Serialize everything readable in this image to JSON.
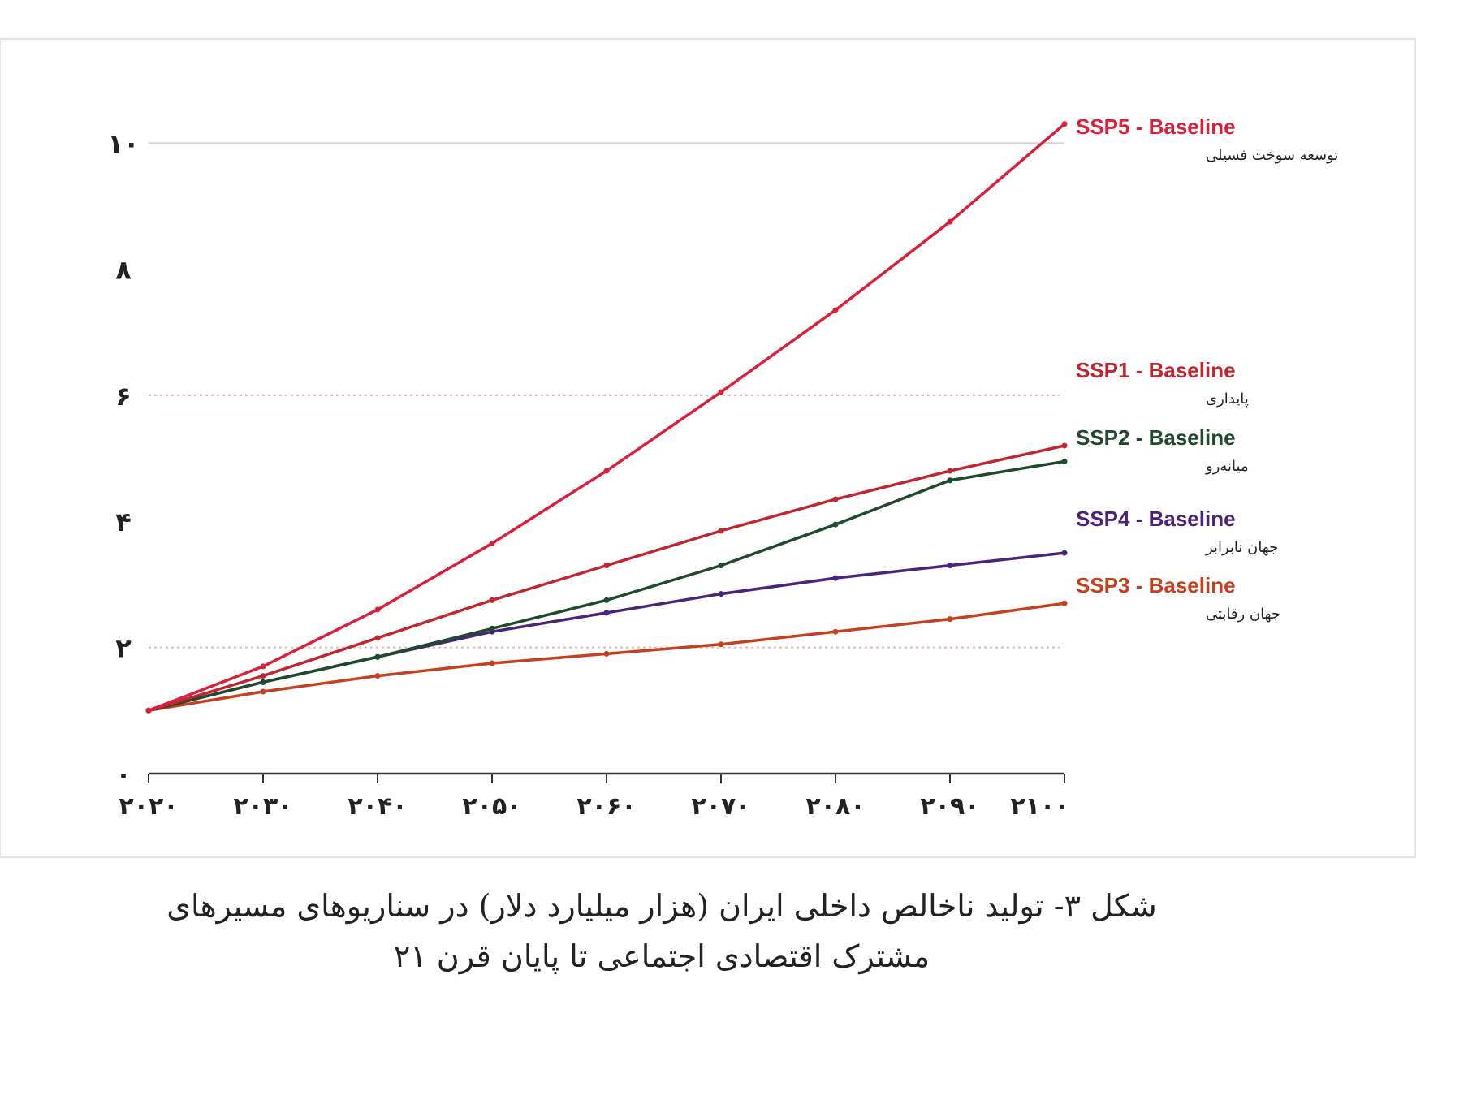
{
  "chart_data": {
    "type": "line",
    "x": [
      2020,
      2030,
      2040,
      2050,
      2060,
      2070,
      2080,
      2090,
      2100
    ],
    "x_tick_labels": [
      "۲۰۲۰",
      "۲۰۳۰",
      "۲۰۴۰",
      "۲۰۵۰",
      "۲۰۶۰",
      "۲۰۷۰",
      "۲۰۸۰",
      "۲۰۹۰",
      "۲۱۰۰"
    ],
    "y_ticks": [
      0,
      2,
      4,
      6,
      8,
      10
    ],
    "y_tick_labels": [
      "۰",
      "۲",
      "۴",
      "۶",
      "۸",
      "۱۰"
    ],
    "ylim": [
      0,
      10.4
    ],
    "xlim": [
      2020,
      2100
    ],
    "grid": "horizontal lines at 2, 6 and 10",
    "legend": "right end labels",
    "series": [
      {
        "name": "SSP5 - Baseline",
        "subtitle": "توسعه سوخت فسیلی",
        "color": "#d9203a",
        "values": [
          1.0,
          1.7,
          2.6,
          3.65,
          4.8,
          6.05,
          7.35,
          8.75,
          10.3
        ]
      },
      {
        "name": "SSP1 - Baseline",
        "subtitle": "پایداری",
        "color": "#c02532",
        "values": [
          1.0,
          1.55,
          2.15,
          2.75,
          3.3,
          3.85,
          4.35,
          4.8,
          5.2
        ]
      },
      {
        "name": "SSP2 - Baseline",
        "subtitle": "میانه‌رو",
        "color": "#1f4a2c",
        "values": [
          1.0,
          1.45,
          1.85,
          2.3,
          2.75,
          3.3,
          3.95,
          4.65,
          4.95
        ]
      },
      {
        "name": "SSP4 - Baseline",
        "subtitle": "جهان نابرابر",
        "color": "#4a2478",
        "values": [
          1.0,
          1.45,
          1.85,
          2.25,
          2.55,
          2.85,
          3.1,
          3.3,
          3.5
        ]
      },
      {
        "name": "SSP3 - Baseline",
        "subtitle": "جهان رقابتی",
        "color": "#c4401e",
        "values": [
          1.0,
          1.3,
          1.55,
          1.75,
          1.9,
          2.05,
          2.25,
          2.45,
          2.7
        ]
      }
    ]
  },
  "caption": {
    "line1": "شکل ۳- تولید ناخالص داخلی ایران (هزار میلیارد دلار) در سناریوهای مسیرهای",
    "line2": "مشترک اقتصادی اجتماعی تا پایان قرن ۲۱"
  }
}
